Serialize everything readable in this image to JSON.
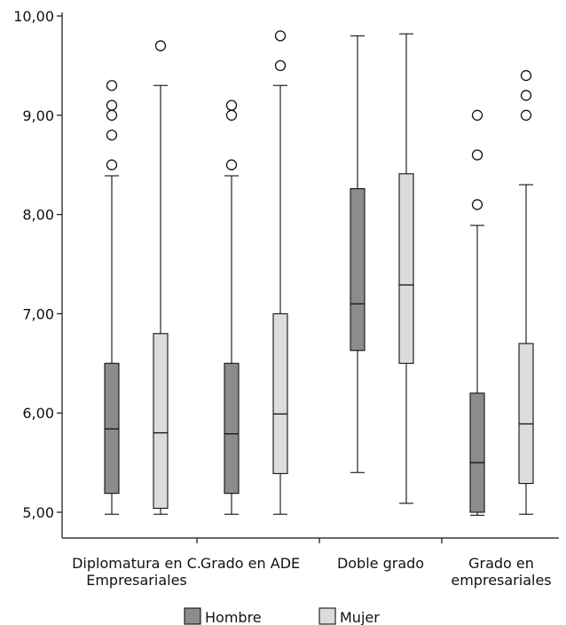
{
  "chart_data": {
    "type": "box",
    "y_ticks": [
      "10,00",
      "9,00",
      "8,00",
      "7,00",
      "6,00",
      "5,00"
    ],
    "ylim": [
      5.0,
      10.0
    ],
    "categories": [
      {
        "lines": [
          "Diplomatura en C.",
          "Empresariales"
        ]
      },
      {
        "lines": [
          "Grado en ADE"
        ]
      },
      {
        "lines": [
          "Doble grado"
        ]
      },
      {
        "lines": [
          "Grado en",
          "empresariales"
        ]
      }
    ],
    "series": [
      {
        "name": "Hombre",
        "color": "#8c8c8c",
        "boxes": [
          {
            "min": 4.98,
            "q1": 5.19,
            "median": 5.84,
            "q3": 6.5,
            "max": 8.39,
            "outliers": [
              8.5,
              8.8,
              9.0,
              9.1,
              9.3
            ]
          },
          {
            "min": 4.98,
            "q1": 5.19,
            "median": 5.79,
            "q3": 6.5,
            "max": 8.39,
            "outliers": [
              8.5,
              9.0,
              9.1
            ]
          },
          {
            "min": 5.4,
            "q1": 6.63,
            "median": 7.1,
            "q3": 8.26,
            "max": 9.8,
            "outliers": []
          },
          {
            "min": 4.97,
            "q1": 5.0,
            "median": 5.5,
            "q3": 6.2,
            "max": 7.89,
            "outliers": [
              8.1,
              8.6,
              9.0
            ]
          }
        ]
      },
      {
        "name": "Mujer",
        "color": "#dcdcdc",
        "boxes": [
          {
            "min": 4.98,
            "q1": 5.04,
            "median": 5.8,
            "q3": 6.8,
            "max": 9.3,
            "outliers": [
              9.7
            ]
          },
          {
            "min": 4.98,
            "q1": 5.39,
            "median": 5.99,
            "q3": 7.0,
            "max": 9.3,
            "outliers": [
              9.5,
              9.8
            ]
          },
          {
            "min": 5.09,
            "q1": 6.5,
            "median": 7.29,
            "q3": 8.41,
            "max": 9.82,
            "outliers": []
          },
          {
            "min": 4.98,
            "q1": 5.29,
            "median": 5.89,
            "q3": 6.7,
            "max": 8.3,
            "outliers": [
              9.0,
              9.2,
              9.4
            ]
          }
        ]
      }
    ]
  }
}
